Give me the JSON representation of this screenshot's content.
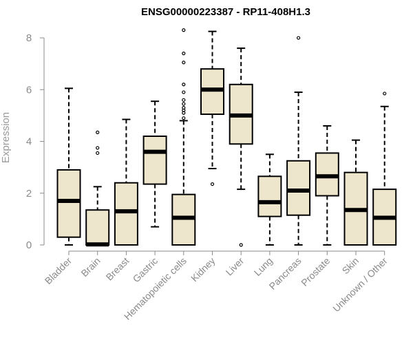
{
  "chart_data": {
    "type": "boxplot",
    "title": "ENSG00000223387 - RP11-408H1.3",
    "xlabel": "",
    "ylabel": "Expression",
    "ylim": [
      0,
      8.4
    ],
    "yticks": [
      0,
      2,
      4,
      6,
      8
    ],
    "box_fill": "#ede5cc",
    "categories": [
      "Bladder",
      "Brain",
      "Breast",
      "Gastric",
      "Hematopoietic cells",
      "Kidney",
      "Liver",
      "Lung",
      "Pancreas",
      "Prostate",
      "Skin",
      "Unknown / Other"
    ],
    "boxes": [
      {
        "whisker_low": 0.0,
        "q1": 0.3,
        "median": 1.7,
        "q3": 2.9,
        "whisker_high": 6.05,
        "outliers": []
      },
      {
        "whisker_low": 0.0,
        "q1": 0.0,
        "median": 0.02,
        "q3": 1.35,
        "whisker_high": 2.25,
        "outliers": [
          3.55,
          3.75,
          4.35
        ]
      },
      {
        "whisker_low": 0.0,
        "q1": 0.0,
        "median": 1.3,
        "q3": 2.4,
        "whisker_high": 4.85,
        "outliers": []
      },
      {
        "whisker_low": 0.7,
        "q1": 2.35,
        "median": 3.6,
        "q3": 4.2,
        "whisker_high": 5.55,
        "outliers": []
      },
      {
        "whisker_low": 0.0,
        "q1": 0.0,
        "median": 1.05,
        "q3": 1.95,
        "whisker_high": 4.8,
        "outliers": [
          4.9,
          5.1,
          5.2,
          5.3,
          5.45,
          5.6,
          5.9,
          6.2,
          7.05,
          7.4,
          8.3
        ]
      },
      {
        "whisker_low": 2.95,
        "q1": 5.05,
        "median": 6.0,
        "q3": 6.8,
        "whisker_high": 8.25,
        "outliers": [
          2.35
        ]
      },
      {
        "whisker_low": 2.15,
        "q1": 3.9,
        "median": 5.0,
        "q3": 6.2,
        "whisker_high": 7.6,
        "outliers": [
          0.0
        ]
      },
      {
        "whisker_low": 0.0,
        "q1": 1.1,
        "median": 1.65,
        "q3": 2.65,
        "whisker_high": 3.5,
        "outliers": []
      },
      {
        "whisker_low": 0.0,
        "q1": 1.15,
        "median": 2.1,
        "q3": 3.25,
        "whisker_high": 5.9,
        "outliers": [
          8.0
        ]
      },
      {
        "whisker_low": 0.0,
        "q1": 1.9,
        "median": 2.65,
        "q3": 3.55,
        "whisker_high": 4.6,
        "outliers": []
      },
      {
        "whisker_low": 0.0,
        "q1": 0.0,
        "median": 1.35,
        "q3": 2.8,
        "whisker_high": 4.05,
        "outliers": []
      },
      {
        "whisker_low": 0.0,
        "q1": 0.0,
        "median": 1.05,
        "q3": 2.15,
        "whisker_high": 5.35,
        "outliers": [
          5.85
        ]
      }
    ]
  }
}
